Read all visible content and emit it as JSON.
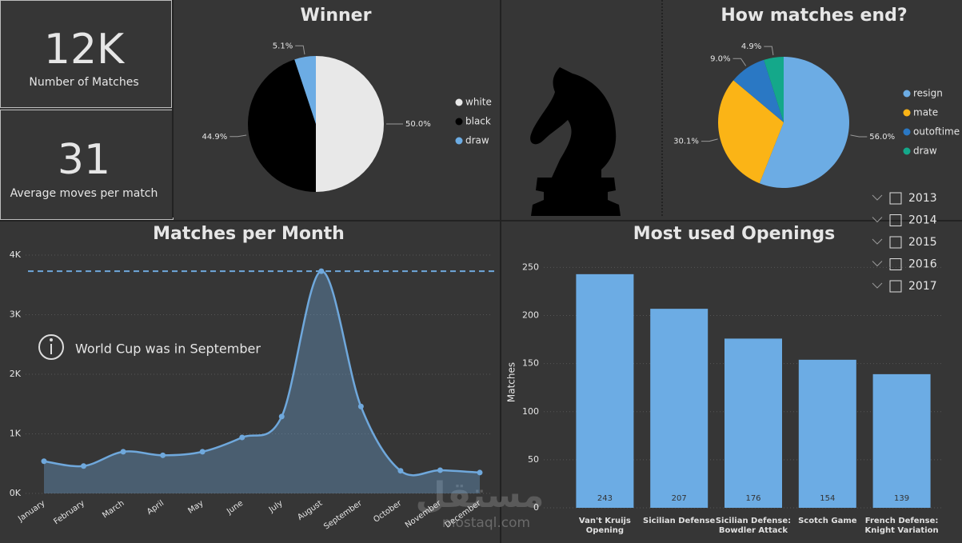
{
  "kpis": [
    {
      "value": "12K",
      "label": "Number of Matches"
    },
    {
      "value": "31",
      "label": "Average moves per match"
    }
  ],
  "chart_data": [
    {
      "type": "pie",
      "title": "Winner",
      "categories": [
        "white",
        "black",
        "draw"
      ],
      "values": [
        50.0,
        44.9,
        5.1
      ],
      "value_labels": [
        "50.0%",
        "44.9%",
        "5.1%"
      ],
      "colors": [
        "#e8e8e8",
        "#000000",
        "#6cace4"
      ],
      "legend": "right"
    },
    {
      "type": "pie",
      "title": "How matches end?",
      "categories": [
        "resign",
        "mate",
        "outoftime",
        "draw"
      ],
      "values": [
        56.0,
        30.1,
        9.0,
        4.9
      ],
      "value_labels": [
        "56.0%",
        "30.1%",
        "9.0%",
        "4.9%"
      ],
      "colors": [
        "#6cace4",
        "#fbb416",
        "#2a78c4",
        "#14a88a"
      ],
      "legend": "right"
    },
    {
      "type": "line",
      "title": "Matches per Month",
      "categories": [
        "January",
        "February",
        "March",
        "April",
        "May",
        "June",
        "July",
        "August",
        "September",
        "October",
        "November",
        "December"
      ],
      "values": [
        540,
        460,
        700,
        640,
        700,
        940,
        1290,
        3730,
        1460,
        380,
        390,
        350
      ],
      "color": "#6fa8dc",
      "ylim": [
        0,
        4000
      ],
      "yticks": [
        {
          "value": 0,
          "label": "0K"
        },
        {
          "value": 1000,
          "label": "1K"
        },
        {
          "value": 2000,
          "label": "2K"
        },
        {
          "value": 3000,
          "label": "3K"
        },
        {
          "value": 4000,
          "label": "4K"
        }
      ],
      "grid": true,
      "annotation": "World Cup was in September"
    },
    {
      "type": "bar",
      "title": "Most used Openings",
      "y_label": "Matches",
      "categories": [
        "Van't Kruijs Opening",
        "Sicilian Defense",
        "Sicilian Defense: Bowdler Attack",
        "Scotch Game",
        "French Defense: Knight Variation"
      ],
      "values": [
        243,
        207,
        176,
        154,
        139
      ],
      "color": "#6cace4",
      "ylim": [
        0,
        262
      ],
      "yticks": [
        0,
        50,
        100,
        150,
        200,
        250
      ],
      "grid": true
    }
  ],
  "slicer": {
    "years": [
      "2013",
      "2014",
      "2015",
      "2016",
      "2017"
    ]
  },
  "watermark": {
    "arabic": "مستقل",
    "latin": "mostaql.com"
  }
}
